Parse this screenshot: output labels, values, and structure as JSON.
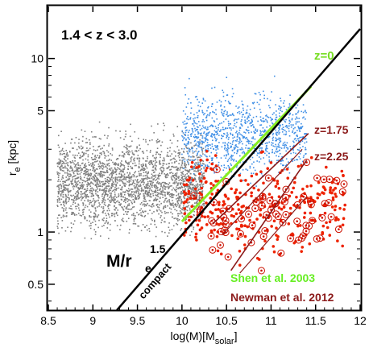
{
  "chart_data": {
    "type": "scatter",
    "title": "",
    "xlabel": {
      "main": "log(M)[M",
      "sub": "solar",
      "close": "]"
    },
    "ylabel": {
      "main": "r",
      "sub": "e",
      "rest": " [kpc]"
    },
    "xlim": [
      8.5,
      12
    ],
    "ylim_log10": [
      -0.45,
      1.3
    ],
    "y_scale": "log",
    "grid": false,
    "legend": "none",
    "x_ticks": [
      8.5,
      9,
      9.5,
      10,
      10.5,
      11,
      11.5,
      12
    ],
    "x_tick_labels": [
      "8.5",
      "9",
      "9.5",
      "10",
      "10.5",
      "11",
      "11.5",
      "12"
    ],
    "y_ticks": [
      0.5,
      1,
      5,
      10
    ],
    "y_tick_labels": [
      "0.5",
      "1",
      "5",
      "10"
    ],
    "series": [
      {
        "color": "#7f7f7f",
        "marker": "small dot",
        "distribution": {
          "x_range": [
            8.6,
            10.25
          ],
          "log_r_center": 0.28,
          "log_r_spread": 0.24,
          "count": 2600
        }
      },
      {
        "color": "#3f8fe6",
        "marker": "small dot",
        "distribution": {
          "x_range": [
            10.0,
            11.4
          ],
          "log_r_center": 0.56,
          "log_r_spread": 0.22,
          "count": 1100
        }
      },
      {
        "color": "#ee2200",
        "marker": "dot",
        "distribution": {
          "x_range": [
            10.0,
            11.85
          ],
          "log_r_center": 0.15,
          "log_r_spread": 0.27,
          "count": 330
        }
      },
      {
        "color": "#cc1100",
        "marker": "open circle with dot",
        "distribution": {
          "x_range": [
            10.1,
            11.85
          ],
          "log_r_center": 0.12,
          "log_r_spread": 0.3,
          "count": 75
        }
      }
    ],
    "lines": [
      {
        "name": "z=0",
        "color": "#88ee22",
        "points": [
          [
            10.0,
            1.15
          ],
          [
            11.45,
            6.9
          ]
        ]
      },
      {
        "name": "z=1.75",
        "color": "#8b1a1a",
        "points": [
          [
            10.35,
            1.12
          ],
          [
            11.42,
            3.7
          ]
        ]
      },
      {
        "name": "z=2.25",
        "color": "#8b1a1a",
        "points": [
          [
            10.55,
            0.6
          ],
          [
            11.4,
            2.6
          ]
        ]
      },
      {
        "name": "compact",
        "color": "#000000",
        "points": [
          [
            9.27,
            0.355
          ],
          [
            12.0,
            14.8
          ]
        ]
      }
    ],
    "line_styles": [
      {
        "color": "#8b1a1a",
        "segments": [
          [
            [
              10.45,
              0.96
            ],
            [
              11.35,
              3.0
            ]
          ],
          [
            [
              10.65,
              0.58
            ],
            [
              11.4,
              1.6
            ]
          ]
        ]
      }
    ],
    "annotations": {
      "redshift_range": "1.4 < z < 3.0",
      "z0": "z=0",
      "z175": "z=1.75",
      "z225": "z=2.25",
      "mass_density_main": "M/r",
      "mass_density_sub": "e",
      "mass_density_sup": "1.5",
      "compact": "compact",
      "shen": "Shen et al. 2003",
      "newman": "Newman et al. 2012"
    },
    "colors": {
      "z0_line": "#88ee22",
      "newman_lines": "#8b1a1a",
      "shen_text": "#66ee22",
      "newman_text": "#8b1a1a",
      "compact_line": "#000000"
    }
  }
}
